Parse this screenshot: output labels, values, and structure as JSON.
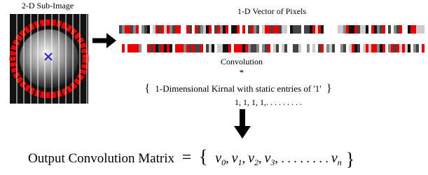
{
  "image_label": "2-D Sub-Image",
  "vector_label": "1-D Vector of Pixels",
  "operation": {
    "name": "Convolution",
    "symbol": "*"
  },
  "kernel": {
    "open": "{",
    "text": "1-Dimensional Kirnal with static entries of '1'",
    "close": "}",
    "entries": "1, 1, 1, 1,. . . . . . . . ."
  },
  "output": {
    "label": "Output Convolution Matrix",
    "equals": "=",
    "open": "{",
    "close": "}",
    "terms": [
      {
        "symbol": "v",
        "subscript": "0",
        "sep": ","
      },
      {
        "symbol": "v",
        "subscript": "1",
        "sep": ","
      },
      {
        "symbol": "v",
        "subscript": "2",
        "sep": ","
      },
      {
        "symbol": "v",
        "subscript": "3",
        "sep": ", . . . . . . . ."
      },
      {
        "symbol": "v",
        "subscript": "n",
        "sep": ""
      }
    ]
  }
}
